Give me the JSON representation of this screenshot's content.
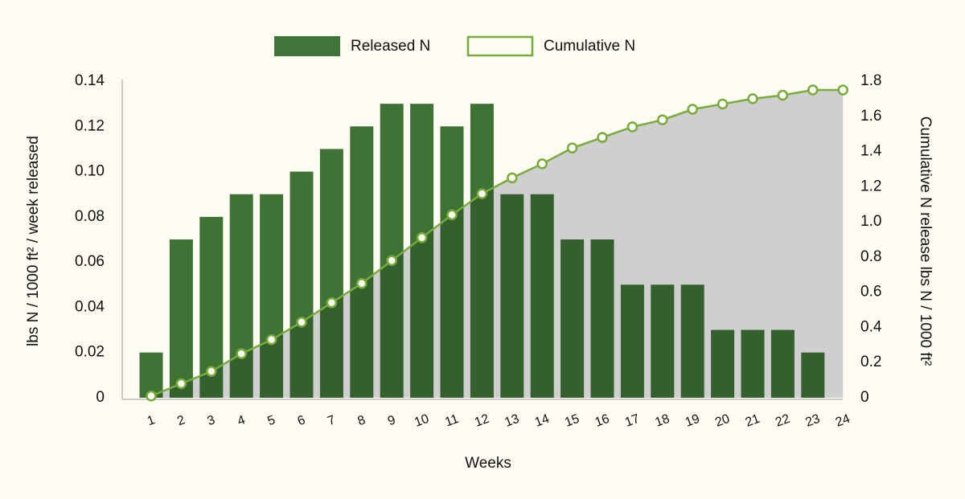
{
  "chart_data": {
    "type": "bar_line",
    "x_label": "Weeks",
    "y_label": "lbs N / 1000 ft² / week released",
    "y2_label": "Cumulative N release lbs N / 1000 ft²",
    "categories": [
      "1",
      "2",
      "3",
      "4",
      "5",
      "6",
      "7",
      "8",
      "9",
      "10",
      "11",
      "12",
      "13",
      "14",
      "15",
      "16",
      "17",
      "18",
      "19",
      "20",
      "21",
      "22",
      "23",
      "24"
    ],
    "series": [
      {
        "name": "Released N",
        "type": "bar",
        "color": "#3f7538",
        "values": [
          0.02,
          0.07,
          0.08,
          0.09,
          0.09,
          0.1,
          0.11,
          0.12,
          0.13,
          0.13,
          0.12,
          0.13,
          0.09,
          0.09,
          0.07,
          0.07,
          0.05,
          0.05,
          0.05,
          0.03,
          0.03,
          0.03,
          0.02,
          null
        ]
      },
      {
        "name": "Cumulative N",
        "type": "line",
        "axis": "y2",
        "color": "#77ab3c",
        "area_color": "#e6e6e6",
        "values": [
          0.01,
          0.08,
          0.15,
          0.25,
          0.33,
          0.43,
          0.54,
          0.65,
          0.78,
          0.91,
          1.04,
          1.16,
          1.25,
          1.33,
          1.42,
          1.48,
          1.54,
          1.58,
          1.64,
          1.67,
          1.7,
          1.72,
          1.75,
          1.75
        ]
      }
    ],
    "ylim": [
      0,
      0.14
    ],
    "yticks": [
      0,
      0.02,
      0.04,
      0.06,
      0.08,
      {
        "value": 0.1,
        "label": "0.10"
      },
      0.12,
      0.14
    ],
    "y2lim": [
      0,
      1.8
    ],
    "y2ticks": [
      0,
      0.2,
      0.4,
      0.6,
      0.8,
      {
        "value": 1,
        "label": "1.0"
      },
      1.2,
      1.4,
      1.6,
      1.8
    ],
    "legend": "top"
  }
}
